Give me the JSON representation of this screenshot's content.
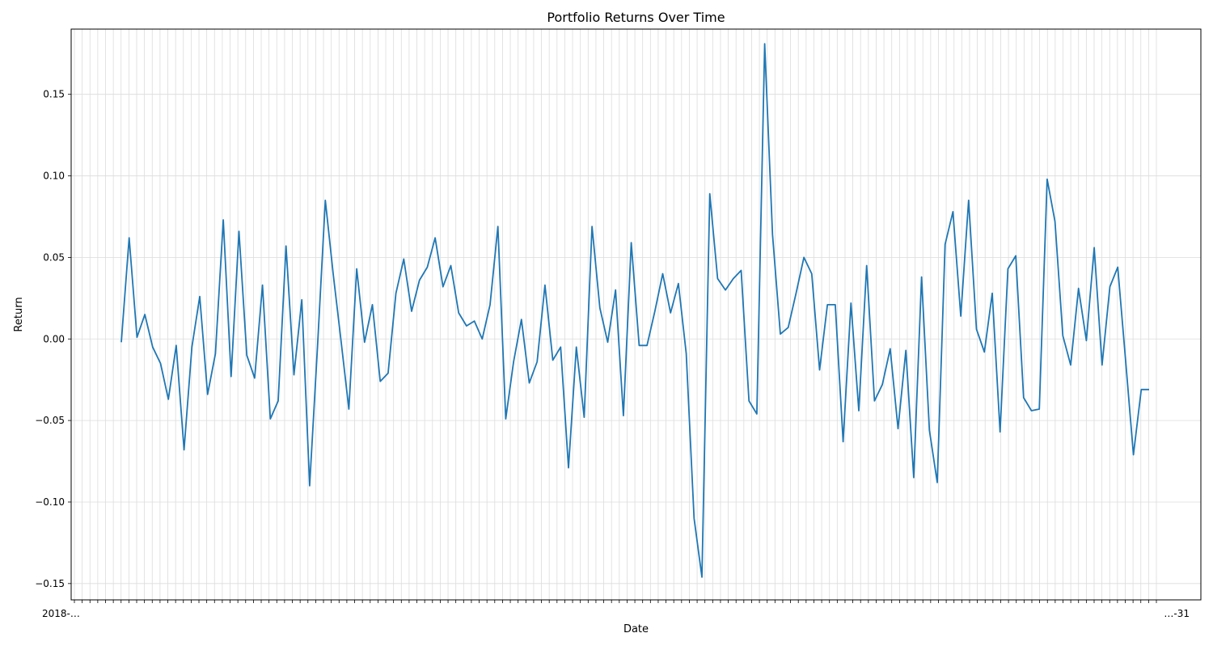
{
  "chart_data": {
    "type": "line",
    "title": "Portfolio Returns Over Time",
    "xlabel": "Date",
    "ylabel": "Return",
    "x_tick_labels_visible": [
      "2018-…",
      "…-31"
    ],
    "ylim": [
      -0.16,
      0.19
    ],
    "yticks": [
      -0.15,
      -0.1,
      -0.05,
      0.0,
      0.05,
      0.1,
      0.15
    ],
    "ytick_labels": [
      "−0.15",
      "−0.10",
      "−0.05",
      "0.00",
      "0.05",
      "0.10",
      "0.15"
    ],
    "grid": true,
    "series": [
      {
        "color": "#1f77b4",
        "values": [
          -0.002,
          0.062,
          0.001,
          0.015,
          -0.005,
          -0.015,
          -0.037,
          -0.004,
          -0.068,
          -0.005,
          0.026,
          -0.034,
          -0.009,
          0.073,
          -0.023,
          0.066,
          -0.01,
          -0.024,
          0.033,
          -0.049,
          -0.038,
          0.057,
          -0.022,
          0.024,
          -0.09,
          -0.005,
          0.085,
          0.04,
          -0.001,
          -0.043,
          0.043,
          -0.002,
          0.021,
          -0.026,
          -0.021,
          0.028,
          0.049,
          0.017,
          0.036,
          0.044,
          0.062,
          0.032,
          0.045,
          0.016,
          0.008,
          0.011,
          0.0,
          0.021,
          0.069,
          -0.049,
          -0.014,
          0.012,
          -0.027,
          -0.014,
          0.033,
          -0.013,
          -0.005,
          -0.079,
          -0.005,
          -0.048,
          0.069,
          0.019,
          -0.002,
          0.03,
          -0.047,
          0.059,
          -0.004,
          -0.004,
          0.017,
          0.04,
          0.016,
          0.034,
          -0.009,
          -0.11,
          -0.146,
          0.089,
          0.037,
          0.03,
          0.037,
          0.042,
          -0.038,
          -0.046,
          0.181,
          0.064,
          0.003,
          0.007,
          0.028,
          0.05,
          0.04,
          -0.019,
          0.021,
          0.021,
          -0.063,
          0.022,
          -0.044,
          0.045,
          -0.038,
          -0.028,
          -0.006,
          -0.055,
          -0.007,
          -0.085,
          0.038,
          -0.056,
          -0.088,
          0.058,
          0.078,
          0.014,
          0.085,
          0.006,
          -0.008,
          0.028,
          -0.057,
          0.043,
          0.051,
          -0.036,
          -0.044,
          -0.043,
          0.098,
          0.072,
          0.002,
          -0.016,
          0.031,
          -0.001,
          0.056,
          -0.016,
          0.032,
          0.044,
          -0.013,
          -0.071,
          -0.031,
          -0.031
        ]
      }
    ]
  }
}
